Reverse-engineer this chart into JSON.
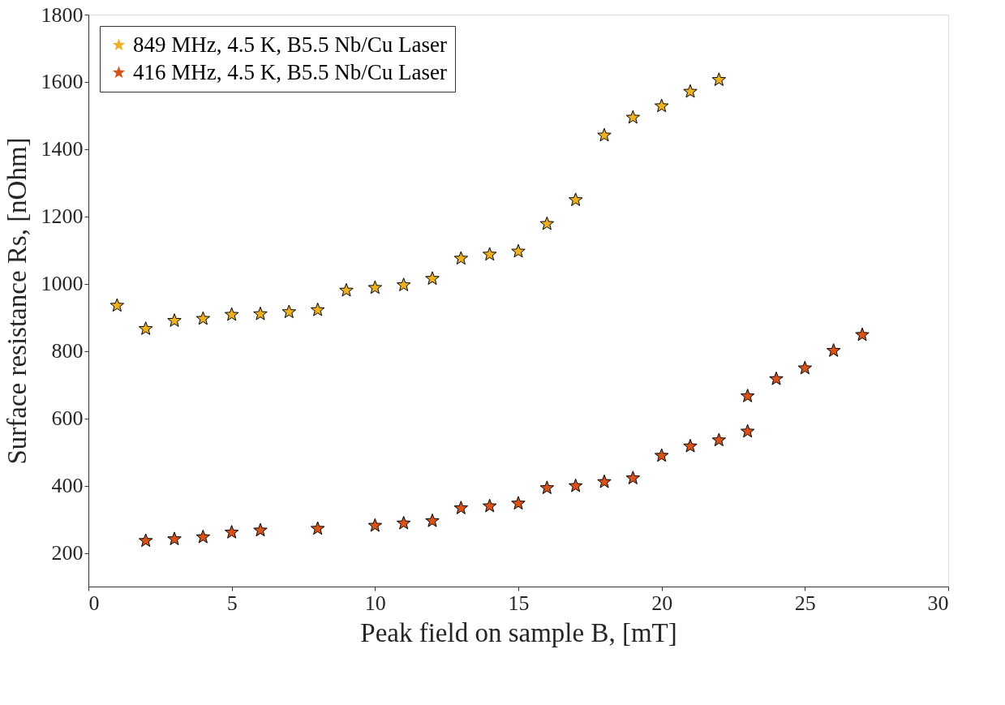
{
  "chart_data": {
    "type": "scatter",
    "xlabel": "Peak field on sample B, [mT]",
    "ylabel": "Surface resistance Rs, [nOhm]",
    "xlim": [
      0,
      30
    ],
    "xticks": [
      0,
      5,
      10,
      15,
      20,
      25,
      30
    ],
    "ylim": [
      100,
      1800
    ],
    "yticks": [
      200,
      400,
      600,
      800,
      1000,
      1200,
      1400,
      1600,
      1800
    ],
    "grid": false,
    "legend": "top left",
    "marker": "star",
    "series": [
      {
        "name": "849 MHz, 4.5 K, B5.5 Nb/Cu Laser",
        "color": "#edb120",
        "x": [
          1,
          2,
          3,
          4,
          5,
          6,
          7,
          8,
          9,
          10,
          11,
          12,
          13,
          14,
          15,
          16,
          17,
          18,
          19,
          20,
          21,
          22
        ],
        "values": [
          935,
          866,
          890,
          896,
          908,
          910,
          916,
          922,
          980,
          988,
          996,
          1015,
          1075,
          1087,
          1096,
          1178,
          1249,
          1441,
          1494,
          1528,
          1571,
          1606
        ]
      },
      {
        "name": "416 MHz, 4.5 K, B5.5 Nb/Cu Laser",
        "color": "#d95319",
        "x": [
          2,
          3,
          4,
          5,
          6,
          8,
          10,
          11,
          12,
          13,
          14,
          15,
          16,
          17,
          18,
          19,
          20,
          21,
          22,
          23,
          23,
          24,
          25,
          26,
          27
        ],
        "values": [
          236,
          241,
          247,
          261,
          267,
          272,
          281,
          288,
          295,
          333,
          339,
          347,
          393,
          399,
          411,
          422,
          489,
          517,
          535,
          561,
          666,
          717,
          749,
          801,
          848
        ]
      }
    ]
  }
}
